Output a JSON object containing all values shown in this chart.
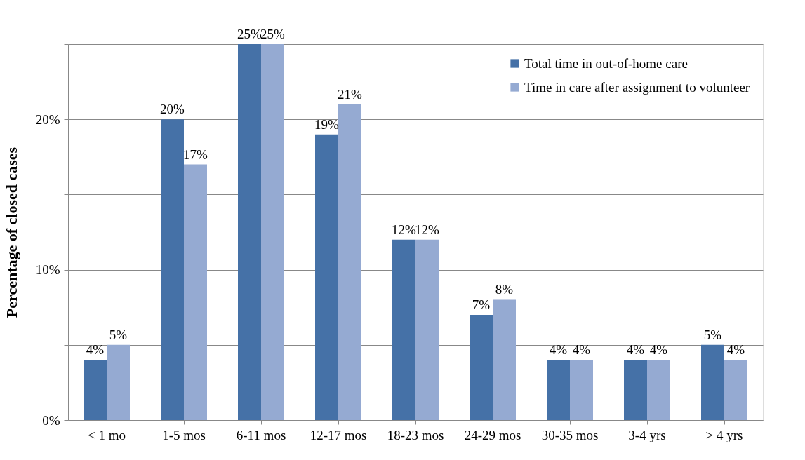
{
  "chart_data": {
    "type": "bar",
    "ylabel": "Percentage of closed cases",
    "categories": [
      "< 1 mo",
      "1-5 mos",
      "6-11 mos",
      "12-17 mos",
      "18-23 mos",
      "24-29 mos",
      "30-35 mos",
      "3-4 yrs",
      "> 4 yrs"
    ],
    "series": [
      {
        "name": "Total time in out-of-home care",
        "color": "#4571a7",
        "values": [
          4,
          20,
          25,
          19,
          12,
          7,
          4,
          4,
          5
        ],
        "value_labels": [
          "4%",
          "20%",
          "25%",
          "19%",
          "12%",
          "7%",
          "4%",
          "4%",
          "5%"
        ]
      },
      {
        "name": "Time in care after assignment to volunteer",
        "color": "#95aad2",
        "values": [
          5,
          17,
          25,
          21,
          12,
          8,
          4,
          4,
          4
        ],
        "value_labels": [
          "5%",
          "17%",
          "25%",
          "21%",
          "12%",
          "8%",
          "4%",
          "4%",
          "4%"
        ]
      }
    ],
    "ylim": [
      0,
      25
    ],
    "yticks": [
      {
        "value": 0,
        "label": "0%"
      },
      {
        "value": 5,
        "label": null
      },
      {
        "value": 10,
        "label": "10%"
      },
      {
        "value": 15,
        "label": null
      },
      {
        "value": 20,
        "label": "20%"
      },
      {
        "value": 25,
        "label": null
      }
    ],
    "grid": "y",
    "legend": "top right"
  }
}
